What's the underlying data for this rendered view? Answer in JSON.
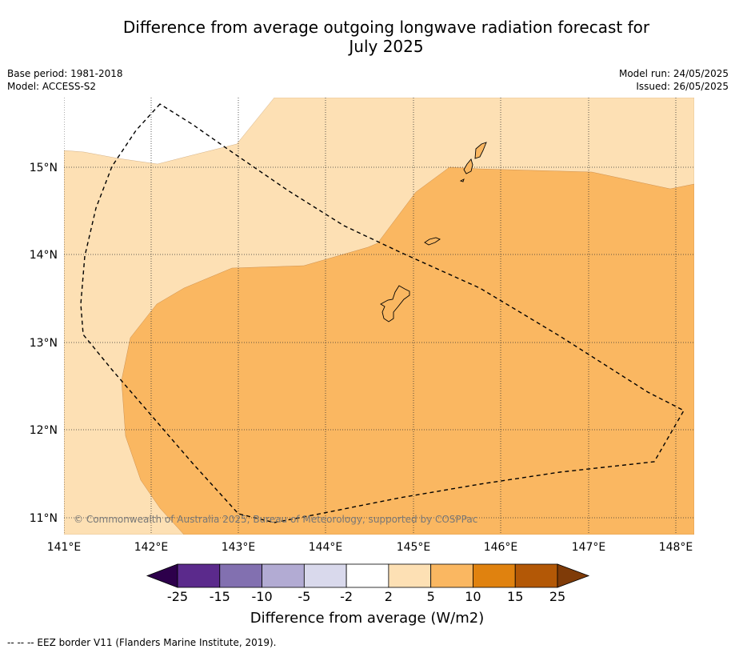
{
  "title_line1": "Difference from average outgoing longwave radiation forecast for",
  "title_line2": "July 2025",
  "meta_left": {
    "base_period": "Base period: 1981-2018",
    "model": "Model: ACCESS-S2"
  },
  "meta_right": {
    "model_run": "Model run: 24/05/2025",
    "issued": "Issued: 26/05/2025"
  },
  "map": {
    "lon_labels": [
      "141°E",
      "142°E",
      "143°E",
      "144°E",
      "145°E",
      "146°E",
      "147°E",
      "148°E"
    ],
    "lat_labels": [
      "15°N",
      "14°N",
      "13°N",
      "12°N",
      "11°N"
    ],
    "copyright": "© Commonwealth of Australia 2025, Bureau of Meteorology, supported by COSPPac",
    "category_colors": {
      "2_to_5": "#fde0b4",
      "5_to_10": "#fab761"
    }
  },
  "colorbar": {
    "label": "Difference from average (W/m2)",
    "ticks": [
      "-25",
      "-15",
      "-10",
      "-5",
      "-2",
      "2",
      "5",
      "10",
      "15",
      "25"
    ],
    "colors": [
      "#5b2a8c",
      "#8270b0",
      "#b2abd3",
      "#d9d9ec",
      "#ffffff",
      "#fde0b4",
      "#fab761",
      "#e0820f",
      "#b35806"
    ],
    "low_extend_color": "#2d004b",
    "high_extend_color": "#7f3b08"
  },
  "footnote": "--  --  -- EEZ border V11 (Flanders Marine Institute, 2019)."
}
